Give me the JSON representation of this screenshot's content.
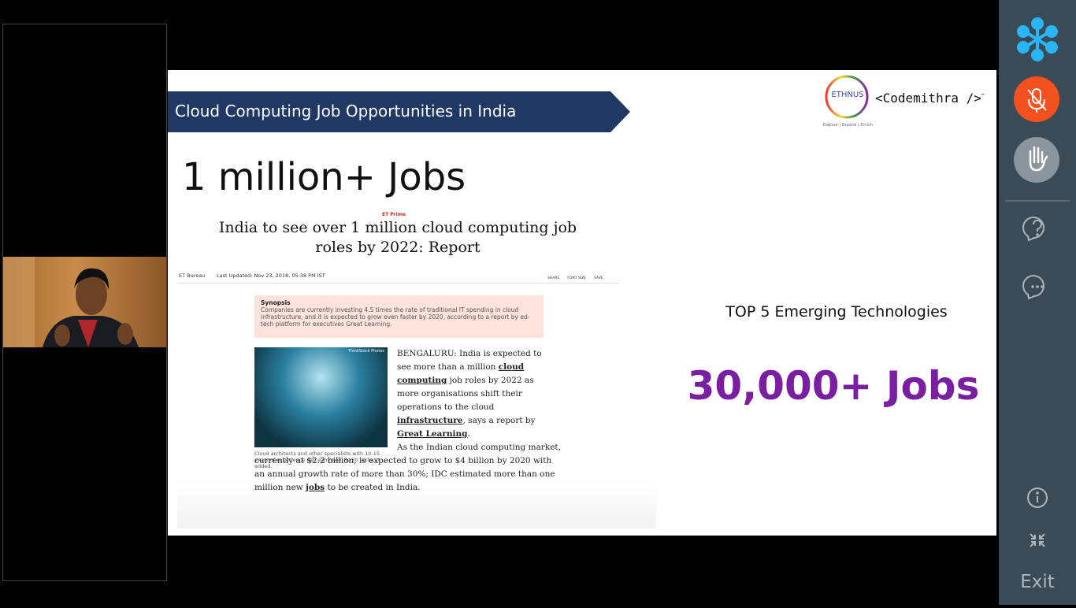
{
  "slide": {
    "banner": "Cloud Computing Job Opportunities in India",
    "headline": "1 million+ Jobs",
    "logo": "ETHNUS",
    "logo_tagline": "Explore | Expand | Enrich",
    "brand": "<Codemithra />",
    "brand_mark": "™",
    "article": {
      "source": "ET Prime",
      "title": "India to see over 1 million cloud computing job roles by 2022: Report",
      "byline": "ET Bureau",
      "updated": "Last Updated: Nov 23, 2018, 05:38 PM IST",
      "tools": [
        "SHARE",
        "FONT SIZE",
        "SAVE"
      ],
      "synopsis_label": "Synopsis",
      "synopsis": "Companies are currently investing 4.5 times the rate of traditional IT spending in cloud infrastructure, and it is expected to grow even faster by 2020, according to a report by ed-tech platform for executives Great Learning.",
      "photo_credit": "ThinkStock Photos",
      "caption": "Cloud architects and other specialists with 10-15 years of experience can earn over Rs 30 lakhs, it added.",
      "paragraphs": [
        [
          {
            "text": "BENGALURU: India is expected to see more than a million "
          },
          {
            "text": "cloud computing",
            "underline": true
          },
          {
            "text": " job roles by 2022 as more organisations shift their operations to the cloud "
          },
          {
            "text": "infrastructure",
            "underline": true
          },
          {
            "text": ", says a report by "
          },
          {
            "text": "Great Learning",
            "underline": true
          },
          {
            "text": "."
          }
        ],
        [
          {
            "text": "As the Indian cloud computing market, currently at $2.2 billion, is expected to grow to $4 billion by 2020 with an annual growth rate of more than 30%; IDC estimated more than one million new "
          },
          {
            "text": "jobs",
            "underline": true
          },
          {
            "text": " to be created in India."
          }
        ]
      ]
    },
    "subheading": "TOP 5 Emerging Technologies",
    "stat": "30,000+ Jobs"
  },
  "sidebar": {
    "exit": "Exit"
  }
}
